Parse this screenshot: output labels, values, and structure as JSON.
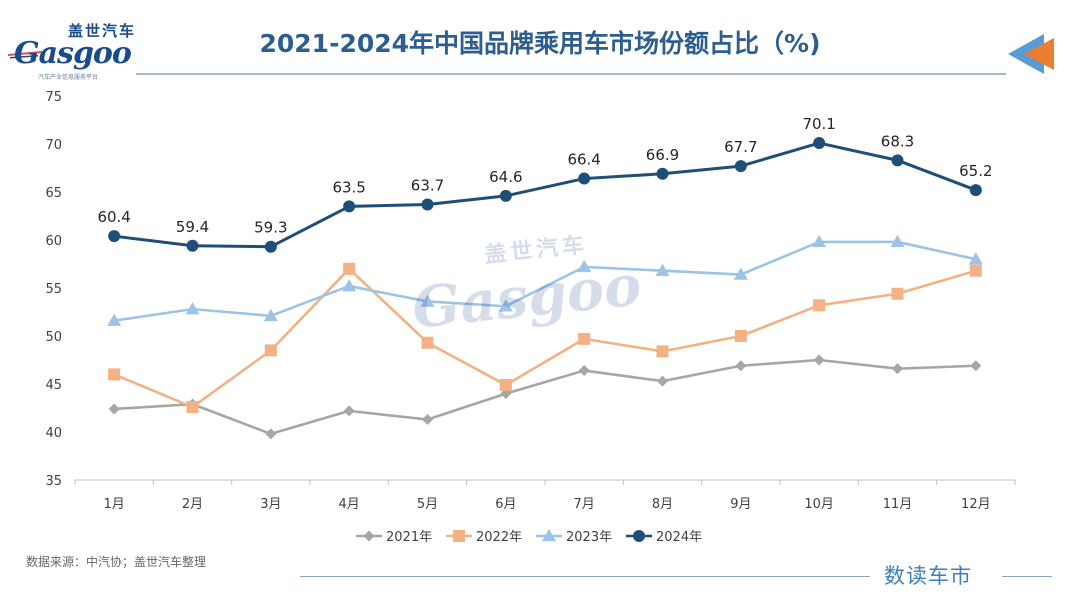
{
  "header": {
    "title": "2021-2024年中国品牌乘用车市场份额占比（%)",
    "logo_cn": "盖世汽车",
    "logo_word": "Gasgoo",
    "logo_sub": "汽车产业信息服务平台"
  },
  "footer": {
    "source": "数据来源：中汽协；盖世汽车整理",
    "brand": "数读车市"
  },
  "colors": {
    "title": "#2e5e8f",
    "2021": "#a6a6a6",
    "2022": "#f4b183",
    "2023": "#9dc3e6",
    "2024": "#1f4e79"
  },
  "chart_data": {
    "type": "line",
    "categories": [
      "1月",
      "2月",
      "3月",
      "4月",
      "5月",
      "6月",
      "7月",
      "8月",
      "9月",
      "10月",
      "11月",
      "12月"
    ],
    "ylim": [
      35,
      75
    ],
    "yticks": [
      35,
      40,
      45,
      50,
      55,
      60,
      65,
      70,
      75
    ],
    "grid": false,
    "legend_position": "bottom",
    "series": [
      {
        "name": "2021年",
        "marker": "diamond",
        "color": "#a6a6a6",
        "values": [
          42.4,
          42.9,
          39.8,
          42.2,
          41.3,
          44.0,
          46.4,
          45.3,
          46.9,
          47.5,
          46.6,
          46.9
        ]
      },
      {
        "name": "2022年",
        "marker": "square",
        "color": "#f4b183",
        "values": [
          46.0,
          42.6,
          48.5,
          57.0,
          49.3,
          44.9,
          49.7,
          48.4,
          50.0,
          53.2,
          54.4,
          56.8
        ]
      },
      {
        "name": "2023年",
        "marker": "triangle",
        "color": "#9dc3e6",
        "values": [
          51.6,
          52.8,
          52.1,
          55.2,
          53.6,
          53.1,
          57.2,
          56.8,
          56.4,
          59.8,
          59.8,
          58.0
        ]
      },
      {
        "name": "2024年",
        "marker": "circle",
        "color": "#1f4e79",
        "labels": true,
        "values": [
          60.4,
          59.4,
          59.3,
          63.5,
          63.7,
          64.6,
          66.4,
          66.9,
          67.7,
          70.1,
          68.3,
          65.2
        ]
      }
    ]
  }
}
